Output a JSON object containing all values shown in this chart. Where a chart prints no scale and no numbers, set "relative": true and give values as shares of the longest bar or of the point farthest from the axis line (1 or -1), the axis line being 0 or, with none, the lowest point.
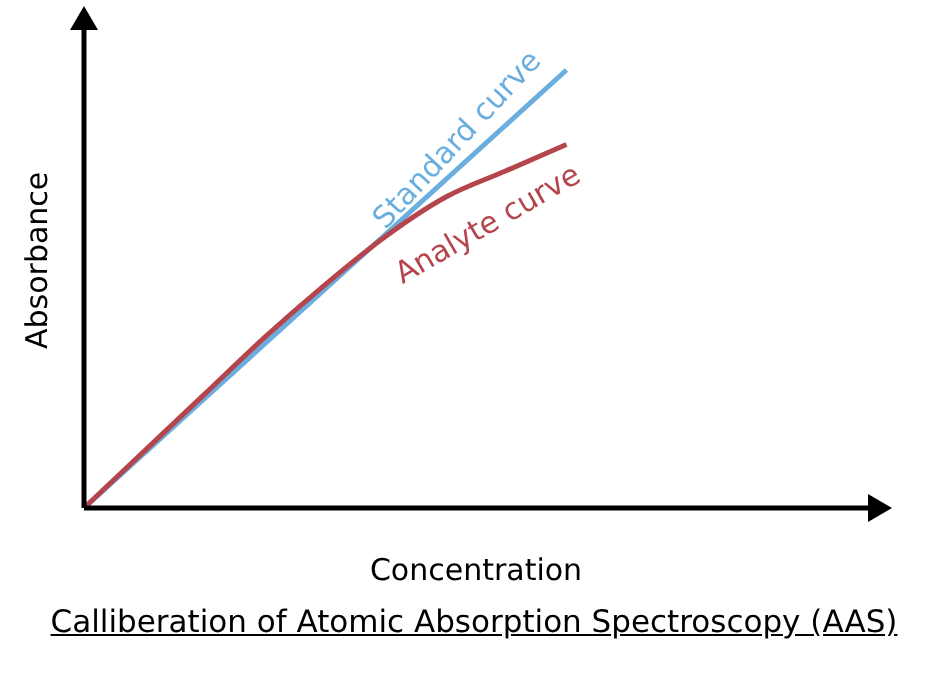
{
  "chart_data": {
    "type": "line",
    "relative": true,
    "xlabel": "Concentration",
    "ylabel": "Absorbance",
    "annotations": [
      "Calliberation of Atomic Absorption Spectroscopy (AAS)"
    ],
    "categories": [
      null,
      null,
      null,
      null,
      null,
      null,
      null,
      null,
      null,
      null,
      null,
      null,
      null,
      null
    ],
    "series": [
      {
        "name": "Standard curve",
        "color": "#6aaee0",
        "values": [
          0,
          0.125,
          0.25,
          0.375,
          0.5,
          0.625,
          0.75,
          0.875,
          1,
          null,
          null,
          null,
          null,
          null
        ]
      },
      {
        "name": "Analyte curve",
        "color": "#b5454d",
        "values": [
          0,
          0.13,
          0.26,
          0.39,
          0.51,
          0.62,
          0.71,
          0.77,
          0.83,
          null,
          null,
          null,
          null,
          null
        ]
      }
    ],
    "marker": "none",
    "line_style": "solid",
    "grid": false,
    "legend": false
  }
}
